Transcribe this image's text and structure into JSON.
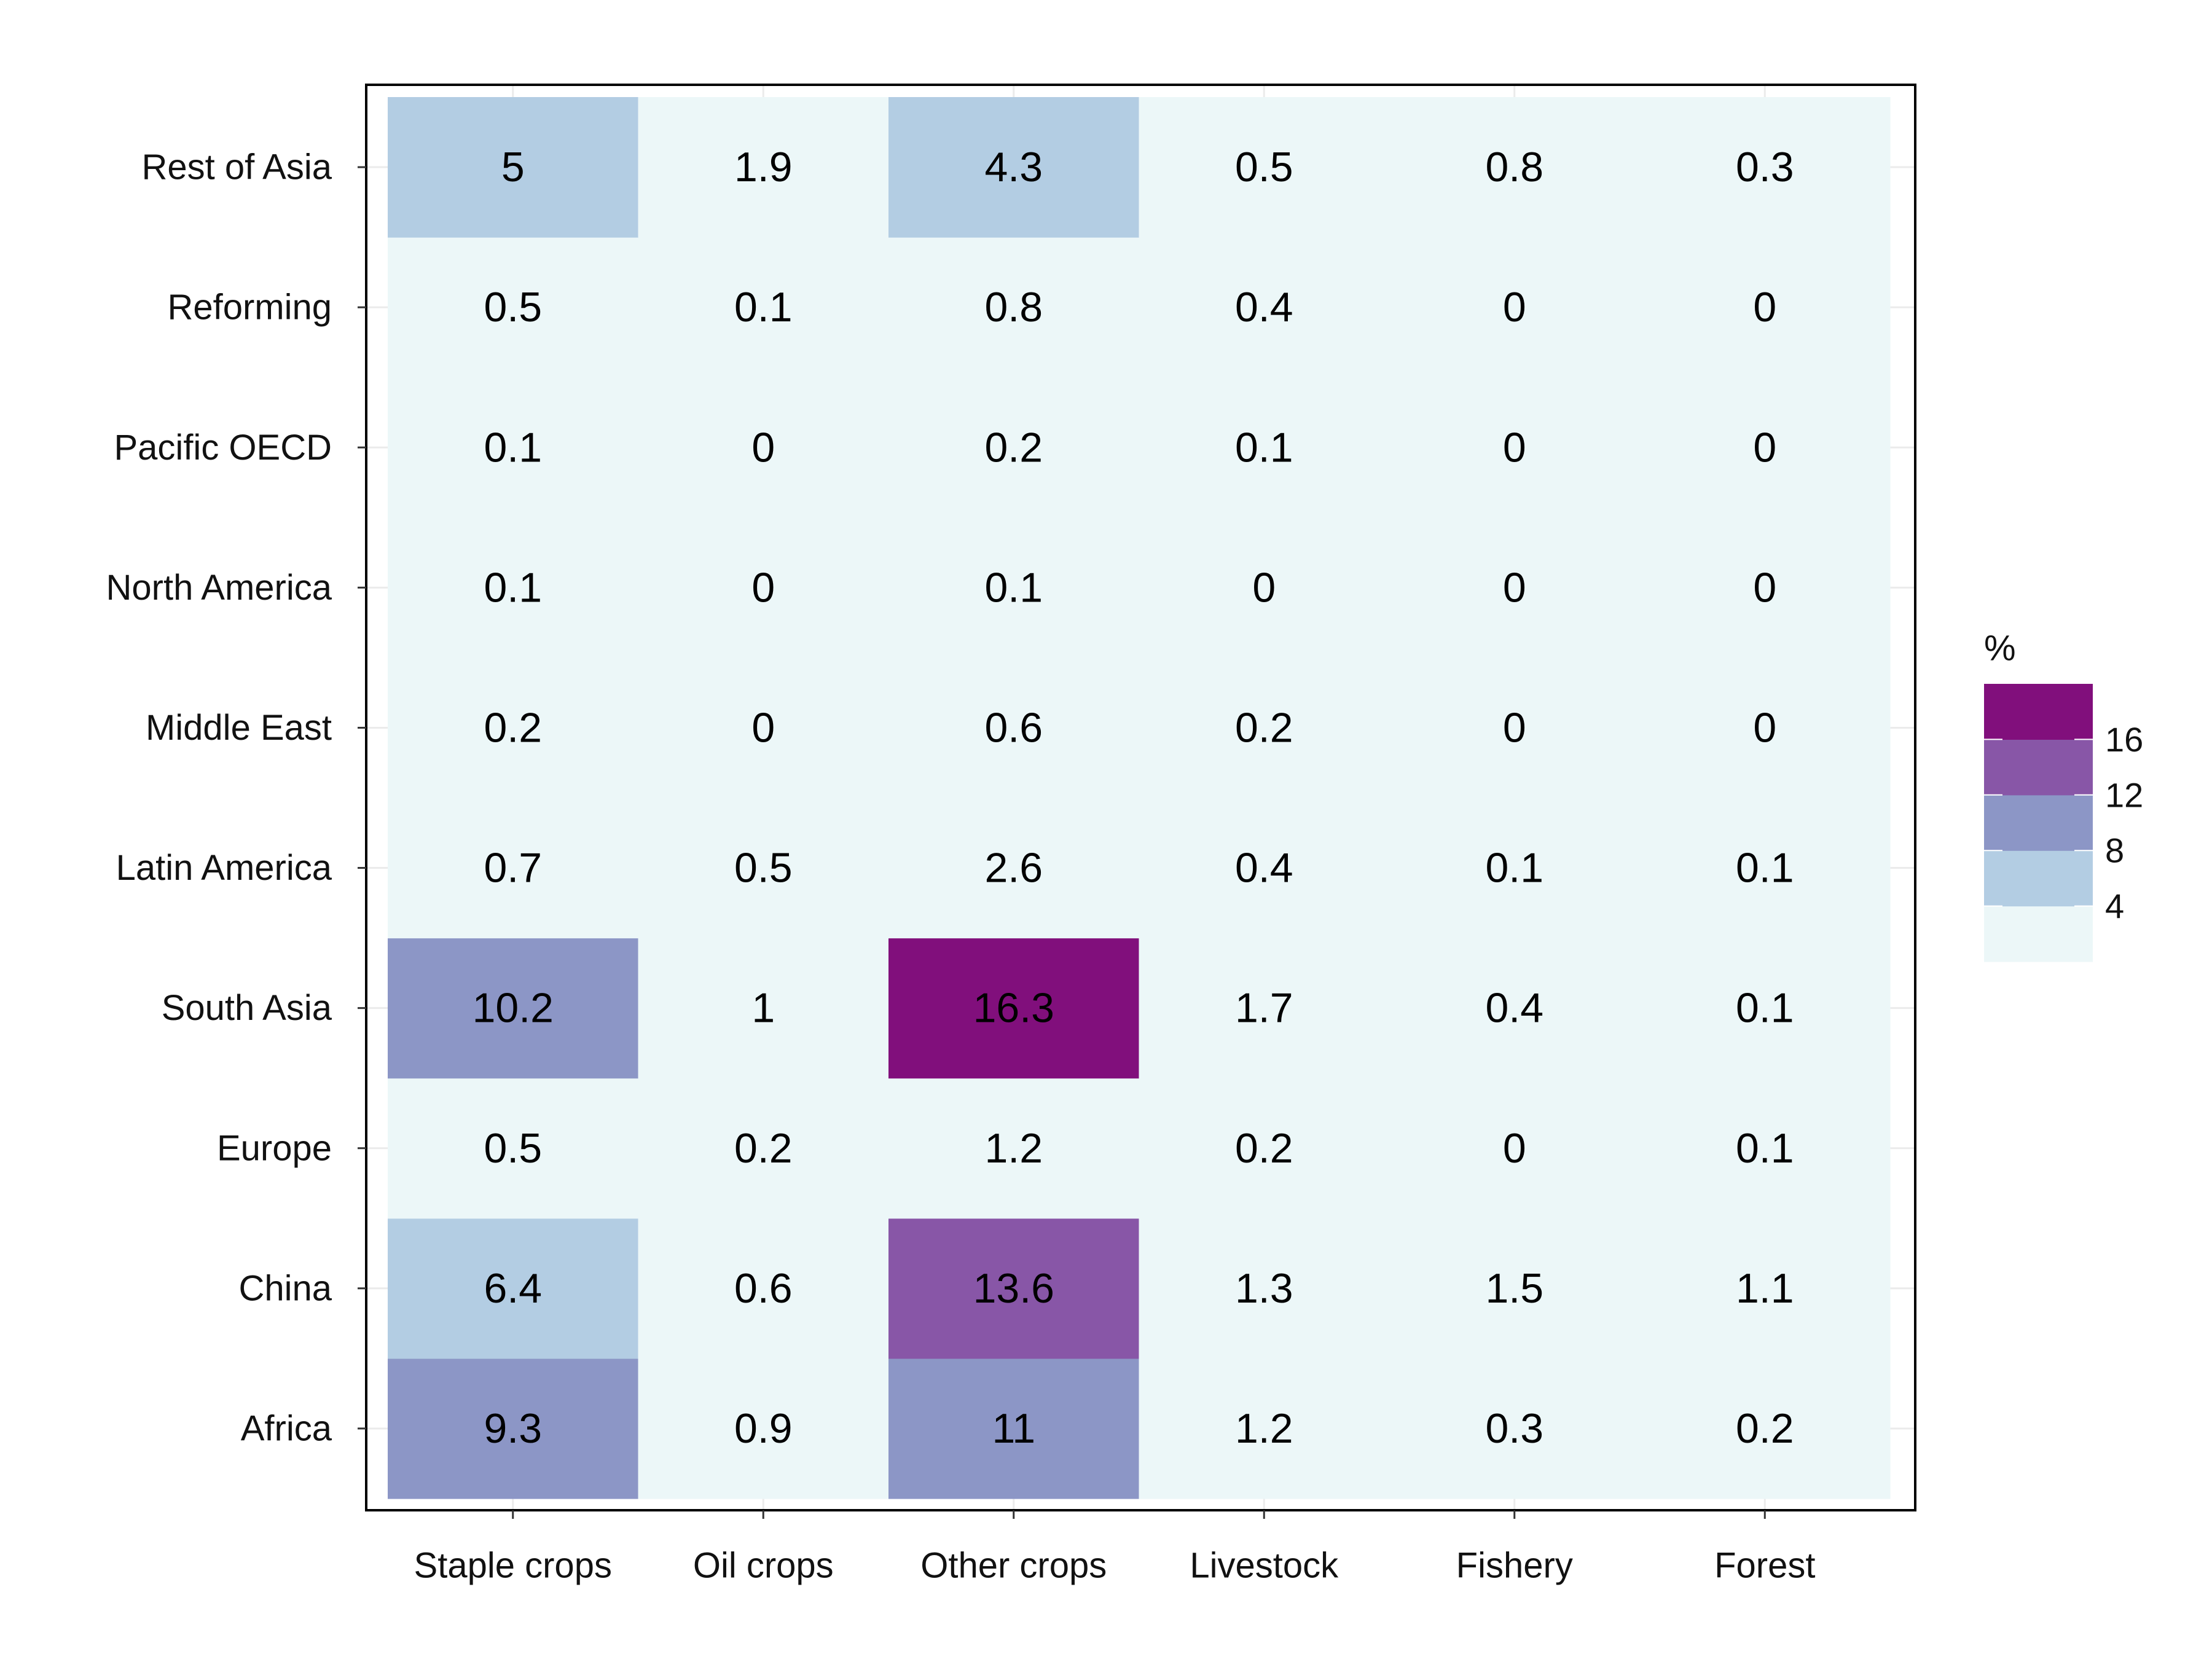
{
  "chart_data": {
    "type": "heatmap",
    "x_categories": [
      "Staple crops",
      "Oil crops",
      "Other crops",
      "Livestock",
      "Fishery",
      "Forest"
    ],
    "y_categories": [
      "Africa",
      "China",
      "Europe",
      "South Asia",
      "Latin America",
      "Middle East",
      "North America",
      "Pacific OECD",
      "Reforming",
      "Rest of Asia"
    ],
    "values": [
      [
        9.3,
        0.9,
        11,
        1.2,
        0.3,
        0.2
      ],
      [
        6.4,
        0.6,
        13.6,
        1.3,
        1.5,
        1.1
      ],
      [
        0.5,
        0.2,
        1.2,
        0.2,
        0,
        0.1
      ],
      [
        10.2,
        1,
        16.3,
        1.7,
        0.4,
        0.1
      ],
      [
        0.7,
        0.5,
        2.6,
        0.4,
        0.1,
        0.1
      ],
      [
        0.2,
        0,
        0.6,
        0.2,
        0,
        0
      ],
      [
        0.1,
        0,
        0.1,
        0,
        0,
        0
      ],
      [
        0.1,
        0,
        0.2,
        0.1,
        0,
        0
      ],
      [
        0.5,
        0.1,
        0.8,
        0.4,
        0,
        0
      ],
      [
        5,
        1.9,
        4.3,
        0.5,
        0.8,
        0.3
      ]
    ],
    "value_labels": [
      [
        "9.3",
        "0.9",
        "11",
        "1.2",
        "0.3",
        "0.2"
      ],
      [
        "6.4",
        "0.6",
        "13.6",
        "1.3",
        "1.5",
        "1.1"
      ],
      [
        "0.5",
        "0.2",
        "1.2",
        "0.2",
        "0",
        "0.1"
      ],
      [
        "10.2",
        "1",
        "16.3",
        "1.7",
        "0.4",
        "0.1"
      ],
      [
        "0.7",
        "0.5",
        "2.6",
        "0.4",
        "0.1",
        "0.1"
      ],
      [
        "0.2",
        "0",
        "0.6",
        "0.2",
        "0",
        "0"
      ],
      [
        "0.1",
        "0",
        "0.1",
        "0",
        "0",
        "0"
      ],
      [
        "0.1",
        "0",
        "0.2",
        "0.1",
        "0",
        "0"
      ],
      [
        "0.5",
        "0.1",
        "0.8",
        "0.4",
        "0",
        "0"
      ],
      [
        "5",
        "1.9",
        "4.3",
        "0.5",
        "0.8",
        "0.3"
      ]
    ],
    "legend": {
      "title": "%",
      "placement": "right",
      "breaks": [
        4,
        8,
        12,
        16
      ],
      "tick_labels": [
        "4",
        "8",
        "12",
        "16"
      ],
      "colors": [
        "#ecf7f8",
        "#b3cde3",
        "#8c96c6",
        "#8856a7",
        "#810f7c"
      ]
    },
    "grid": true
  }
}
